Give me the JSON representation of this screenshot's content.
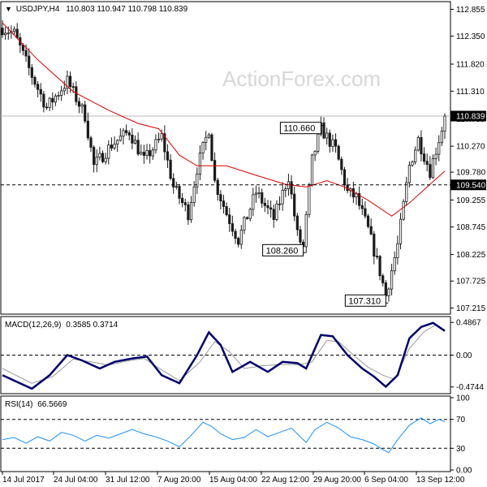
{
  "header": {
    "symbol": "USDJPY,H4",
    "ohlc": "110.803 110.947 110.798 110.839"
  },
  "watermark": "ActionForex.com",
  "colors": {
    "bull": "#1b1b1b",
    "moving_average": "#e00000",
    "current_tag_bg": "#000000",
    "current_tag_text": "#ffffff",
    "macd_line": "#00006e",
    "macd_signal": "#9a9a9a",
    "rsi_line": "#1e90ff",
    "levels": "#000000"
  },
  "chart_data": [
    {
      "type": "candlestick",
      "name": "USDJPY,H4",
      "ylim": [
        107.1,
        113.0
      ],
      "yticks": [
        "112.855",
        "112.350",
        "111.820",
        "111.310",
        "110.785",
        "110.270",
        "109.780",
        "109.255",
        "108.745",
        "108.225",
        "107.725",
        "107.215"
      ],
      "current_value": "110.839",
      "level_line": "109.540",
      "annotations": [
        "110.660",
        "108.260",
        "107.310"
      ],
      "close_path": [
        [
          0,
          112.5
        ],
        [
          4,
          112.4
        ],
        [
          10,
          111.6
        ],
        [
          15,
          111.0
        ],
        [
          22,
          111.5
        ],
        [
          28,
          110.85
        ],
        [
          31,
          109.9
        ],
        [
          37,
          110.3
        ],
        [
          43,
          110.55
        ],
        [
          48,
          110.0
        ],
        [
          54,
          110.45
        ],
        [
          58,
          109.5
        ],
        [
          63,
          109.0
        ],
        [
          66,
          109.85
        ],
        [
          70,
          110.6
        ],
        [
          72,
          109.6
        ],
        [
          76,
          109.0
        ],
        [
          80,
          108.5
        ],
        [
          86,
          109.4
        ],
        [
          92,
          108.9
        ],
        [
          97,
          109.7
        ],
        [
          100,
          108.6
        ],
        [
          102,
          108.35
        ],
        [
          105,
          110.0
        ],
        [
          108,
          110.6
        ],
        [
          113,
          110.2
        ],
        [
          117,
          109.4
        ],
        [
          120,
          109.3
        ],
        [
          124,
          108.7
        ],
        [
          128,
          107.9
        ],
        [
          130,
          107.45
        ],
        [
          134,
          108.4
        ],
        [
          138,
          109.9
        ],
        [
          141,
          110.4
        ],
        [
          145,
          109.8
        ],
        [
          149,
          110.6
        ],
        [
          150,
          110.84
        ]
      ],
      "ma_path": [
        [
          0,
          112.6
        ],
        [
          12,
          111.9
        ],
        [
          24,
          111.3
        ],
        [
          36,
          110.95
        ],
        [
          46,
          110.7
        ],
        [
          53,
          110.6
        ],
        [
          60,
          110.1
        ],
        [
          66,
          109.9
        ],
        [
          76,
          109.9
        ],
        [
          86,
          109.72
        ],
        [
          96,
          109.55
        ],
        [
          103,
          109.5
        ],
        [
          110,
          109.62
        ],
        [
          116,
          109.5
        ],
        [
          124,
          109.25
        ],
        [
          132,
          108.95
        ],
        [
          138,
          109.2
        ],
        [
          144,
          109.5
        ],
        [
          150,
          109.8
        ]
      ]
    },
    {
      "type": "line",
      "name": "MACD(12,26,9)",
      "label": "MACD(12,26,9)",
      "values_text": "0.3585 0.3714",
      "ylim": [
        -0.55,
        0.55
      ],
      "yticks": [
        "0.4867",
        "0.00",
        "-0.4744"
      ],
      "macd_path": [
        [
          0,
          -0.3
        ],
        [
          10,
          -0.5
        ],
        [
          16,
          -0.3
        ],
        [
          22,
          0.0
        ],
        [
          27,
          -0.08
        ],
        [
          33,
          -0.2
        ],
        [
          38,
          -0.1
        ],
        [
          44,
          -0.05
        ],
        [
          49,
          -0.02
        ],
        [
          54,
          -0.3
        ],
        [
          60,
          -0.42
        ],
        [
          66,
          0.0
        ],
        [
          70,
          0.34
        ],
        [
          74,
          0.15
        ],
        [
          78,
          -0.25
        ],
        [
          84,
          -0.1
        ],
        [
          90,
          -0.25
        ],
        [
          95,
          -0.1
        ],
        [
          100,
          -0.12
        ],
        [
          103,
          -0.2
        ],
        [
          108,
          0.3
        ],
        [
          112,
          0.28
        ],
        [
          117,
          0.0
        ],
        [
          122,
          -0.2
        ],
        [
          126,
          -0.32
        ],
        [
          130,
          -0.47
        ],
        [
          134,
          -0.3
        ],
        [
          138,
          0.25
        ],
        [
          142,
          0.42
        ],
        [
          146,
          0.48
        ],
        [
          150,
          0.36
        ]
      ],
      "signal_path": [
        [
          0,
          -0.2
        ],
        [
          10,
          -0.42
        ],
        [
          17,
          -0.32
        ],
        [
          24,
          -0.06
        ],
        [
          30,
          -0.1
        ],
        [
          36,
          -0.15
        ],
        [
          42,
          -0.09
        ],
        [
          48,
          -0.05
        ],
        [
          54,
          -0.22
        ],
        [
          60,
          -0.38
        ],
        [
          67,
          -0.1
        ],
        [
          72,
          0.2
        ],
        [
          77,
          0.05
        ],
        [
          82,
          -0.2
        ],
        [
          88,
          -0.16
        ],
        [
          94,
          -0.14
        ],
        [
          101,
          -0.14
        ],
        [
          105,
          -0.1
        ],
        [
          110,
          0.22
        ],
        [
          114,
          0.2
        ],
        [
          119,
          0.0
        ],
        [
          124,
          -0.18
        ],
        [
          129,
          -0.3
        ],
        [
          133,
          -0.36
        ],
        [
          138,
          0.1
        ],
        [
          143,
          0.35
        ],
        [
          147,
          0.45
        ],
        [
          150,
          0.37
        ]
      ]
    },
    {
      "type": "line",
      "name": "RSI(14)",
      "label": "RSI(14)",
      "value_text": "66.5669",
      "ylim": [
        0,
        100
      ],
      "yticks": [
        "100",
        "70",
        "30",
        "0.00"
      ],
      "levels": [
        70,
        30
      ],
      "path": [
        [
          0,
          42
        ],
        [
          4,
          45
        ],
        [
          8,
          37
        ],
        [
          12,
          46
        ],
        [
          16,
          40
        ],
        [
          20,
          52
        ],
        [
          24,
          48
        ],
        [
          28,
          40
        ],
        [
          32,
          48
        ],
        [
          36,
          44
        ],
        [
          40,
          50
        ],
        [
          44,
          56
        ],
        [
          48,
          50
        ],
        [
          52,
          46
        ],
        [
          56,
          40
        ],
        [
          60,
          32
        ],
        [
          64,
          48
        ],
        [
          68,
          66
        ],
        [
          71,
          60
        ],
        [
          74,
          50
        ],
        [
          78,
          42
        ],
        [
          82,
          45
        ],
        [
          86,
          56
        ],
        [
          90,
          46
        ],
        [
          94,
          52
        ],
        [
          98,
          58
        ],
        [
          101,
          46
        ],
        [
          103,
          38
        ],
        [
          106,
          56
        ],
        [
          110,
          66
        ],
        [
          114,
          58
        ],
        [
          118,
          46
        ],
        [
          122,
          42
        ],
        [
          126,
          36
        ],
        [
          129,
          28
        ],
        [
          131,
          24
        ],
        [
          134,
          42
        ],
        [
          138,
          62
        ],
        [
          142,
          72
        ],
        [
          145,
          64
        ],
        [
          148,
          70
        ],
        [
          150,
          67
        ]
      ]
    }
  ],
  "x_axis": {
    "labels": [
      "14 Jul 2017",
      "24 Jul 04:00",
      "31 Jul 12:00",
      "7 Aug 20:00",
      "15 Aug 04:00",
      "22 Aug 12:00",
      "29 Aug 20:00",
      "6 Sep 04:00",
      "13 Sep 12:00"
    ]
  }
}
